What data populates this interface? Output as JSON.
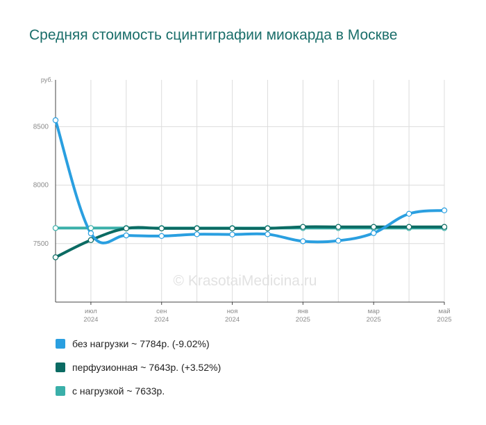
{
  "title": "Средняя стоимость сцинтиграфии миокарда в Москве",
  "watermark": "© KrasotaiMedicina.ru",
  "chart_data": {
    "type": "line",
    "y_unit": "руб.",
    "ylim": [
      7000,
      8900
    ],
    "yticks": [
      {
        "value": 7500,
        "label": "7500"
      },
      {
        "value": 8000,
        "label": "8000"
      },
      {
        "value": 8500,
        "label": "8500"
      }
    ],
    "x_index_range": [
      0,
      11
    ],
    "categories": [
      "2024-06",
      "2024-07",
      "2024-08",
      "2024-09",
      "2024-10",
      "2024-11",
      "2024-12",
      "2025-01",
      "2025-02",
      "2025-03",
      "2025-04",
      "2025-05"
    ],
    "xticks": [
      {
        "index": 1,
        "label": "июл",
        "year": "2024"
      },
      {
        "index": 3,
        "label": "сен",
        "year": "2024"
      },
      {
        "index": 5,
        "label": "ноя",
        "year": "2024"
      },
      {
        "index": 7,
        "label": "янв",
        "year": "2025"
      },
      {
        "index": 9,
        "label": "мар",
        "year": "2025"
      },
      {
        "index": 11,
        "label": "май",
        "year": "2025"
      }
    ],
    "grid": true,
    "legend_position": "bottom-left",
    "series": [
      {
        "name": "с нагрузкой",
        "legend_text": "с нагрузкой ~ 7633р.",
        "color": "#3aafa9",
        "values": [
          7633,
          7633,
          7633,
          7633,
          7633,
          7633,
          7633,
          7633,
          7633,
          7633,
          7633,
          7633
        ]
      },
      {
        "name": "перфузионная",
        "legend_text": "перфузионная ~ 7643р. (+3.52%)",
        "color": "#0b6b63",
        "values": [
          7383,
          7530,
          7630,
          7630,
          7630,
          7630,
          7630,
          7643,
          7643,
          7643,
          7643,
          7643
        ]
      },
      {
        "name": "без нагрузки",
        "legend_text": "без нагрузки ~ 7784р. (-9.02%)",
        "color": "#2a9fe0",
        "values": [
          8555,
          7588,
          7570,
          7565,
          7580,
          7578,
          7580,
          7520,
          7525,
          7590,
          7755,
          7784
        ]
      }
    ]
  }
}
